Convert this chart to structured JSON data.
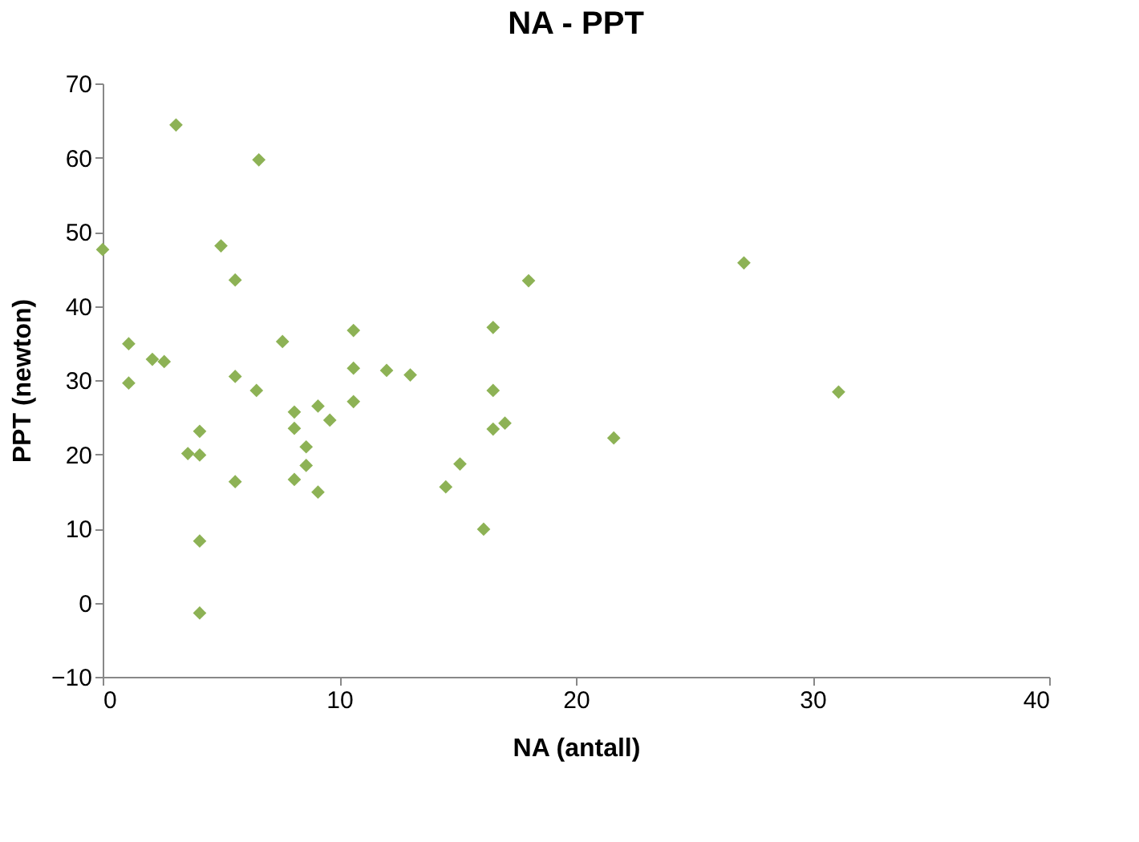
{
  "chart_data": {
    "type": "scatter",
    "title": "NA - PPT",
    "xlabel": "NA (antall)",
    "ylabel": "PPT (newton)",
    "x": [
      0,
      1.1,
      3.1,
      6.6,
      5.0,
      5.6,
      7.6,
      10.6,
      16.5,
      18.0,
      1.1,
      2.1,
      2.6,
      5.6,
      6.5,
      3.6,
      4.1,
      4.1,
      4.1,
      4.1,
      5.6,
      8.1,
      8.1,
      8.1,
      8.6,
      8.6,
      9.1,
      9.1,
      9.6,
      10.6,
      10.6,
      12.0,
      13.0,
      14.5,
      15.1,
      16.1,
      16.5,
      16.5,
      17.0,
      27.1,
      21.6,
      31.1
    ],
    "series": [
      {
        "color": "#8db255",
        "values": [
          47.6,
          34.9,
          64.4,
          59.7,
          48.1,
          43.5,
          35.2,
          36.7,
          37.1,
          43.4,
          29.6,
          32.8,
          32.5,
          30.5,
          28.6,
          20.1,
          19.9,
          23.1,
          8.3,
          -1.4,
          16.3,
          25.7,
          23.5,
          16.6,
          21.0,
          18.5,
          26.5,
          14.9,
          24.6,
          31.6,
          27.1,
          31.3,
          30.7,
          15.6,
          18.7,
          9.9,
          28.6,
          23.4,
          24.2,
          45.8,
          22.2,
          28.4
        ]
      }
    ],
    "xlim": [
      0,
      40
    ],
    "ylim": [
      -10,
      70
    ],
    "xticks": [
      0,
      10,
      20,
      30,
      40
    ],
    "yticks": [
      -10,
      0,
      10,
      20,
      30,
      40,
      50,
      60,
      70
    ],
    "marker": "diamond",
    "grid": false,
    "legend": false
  }
}
